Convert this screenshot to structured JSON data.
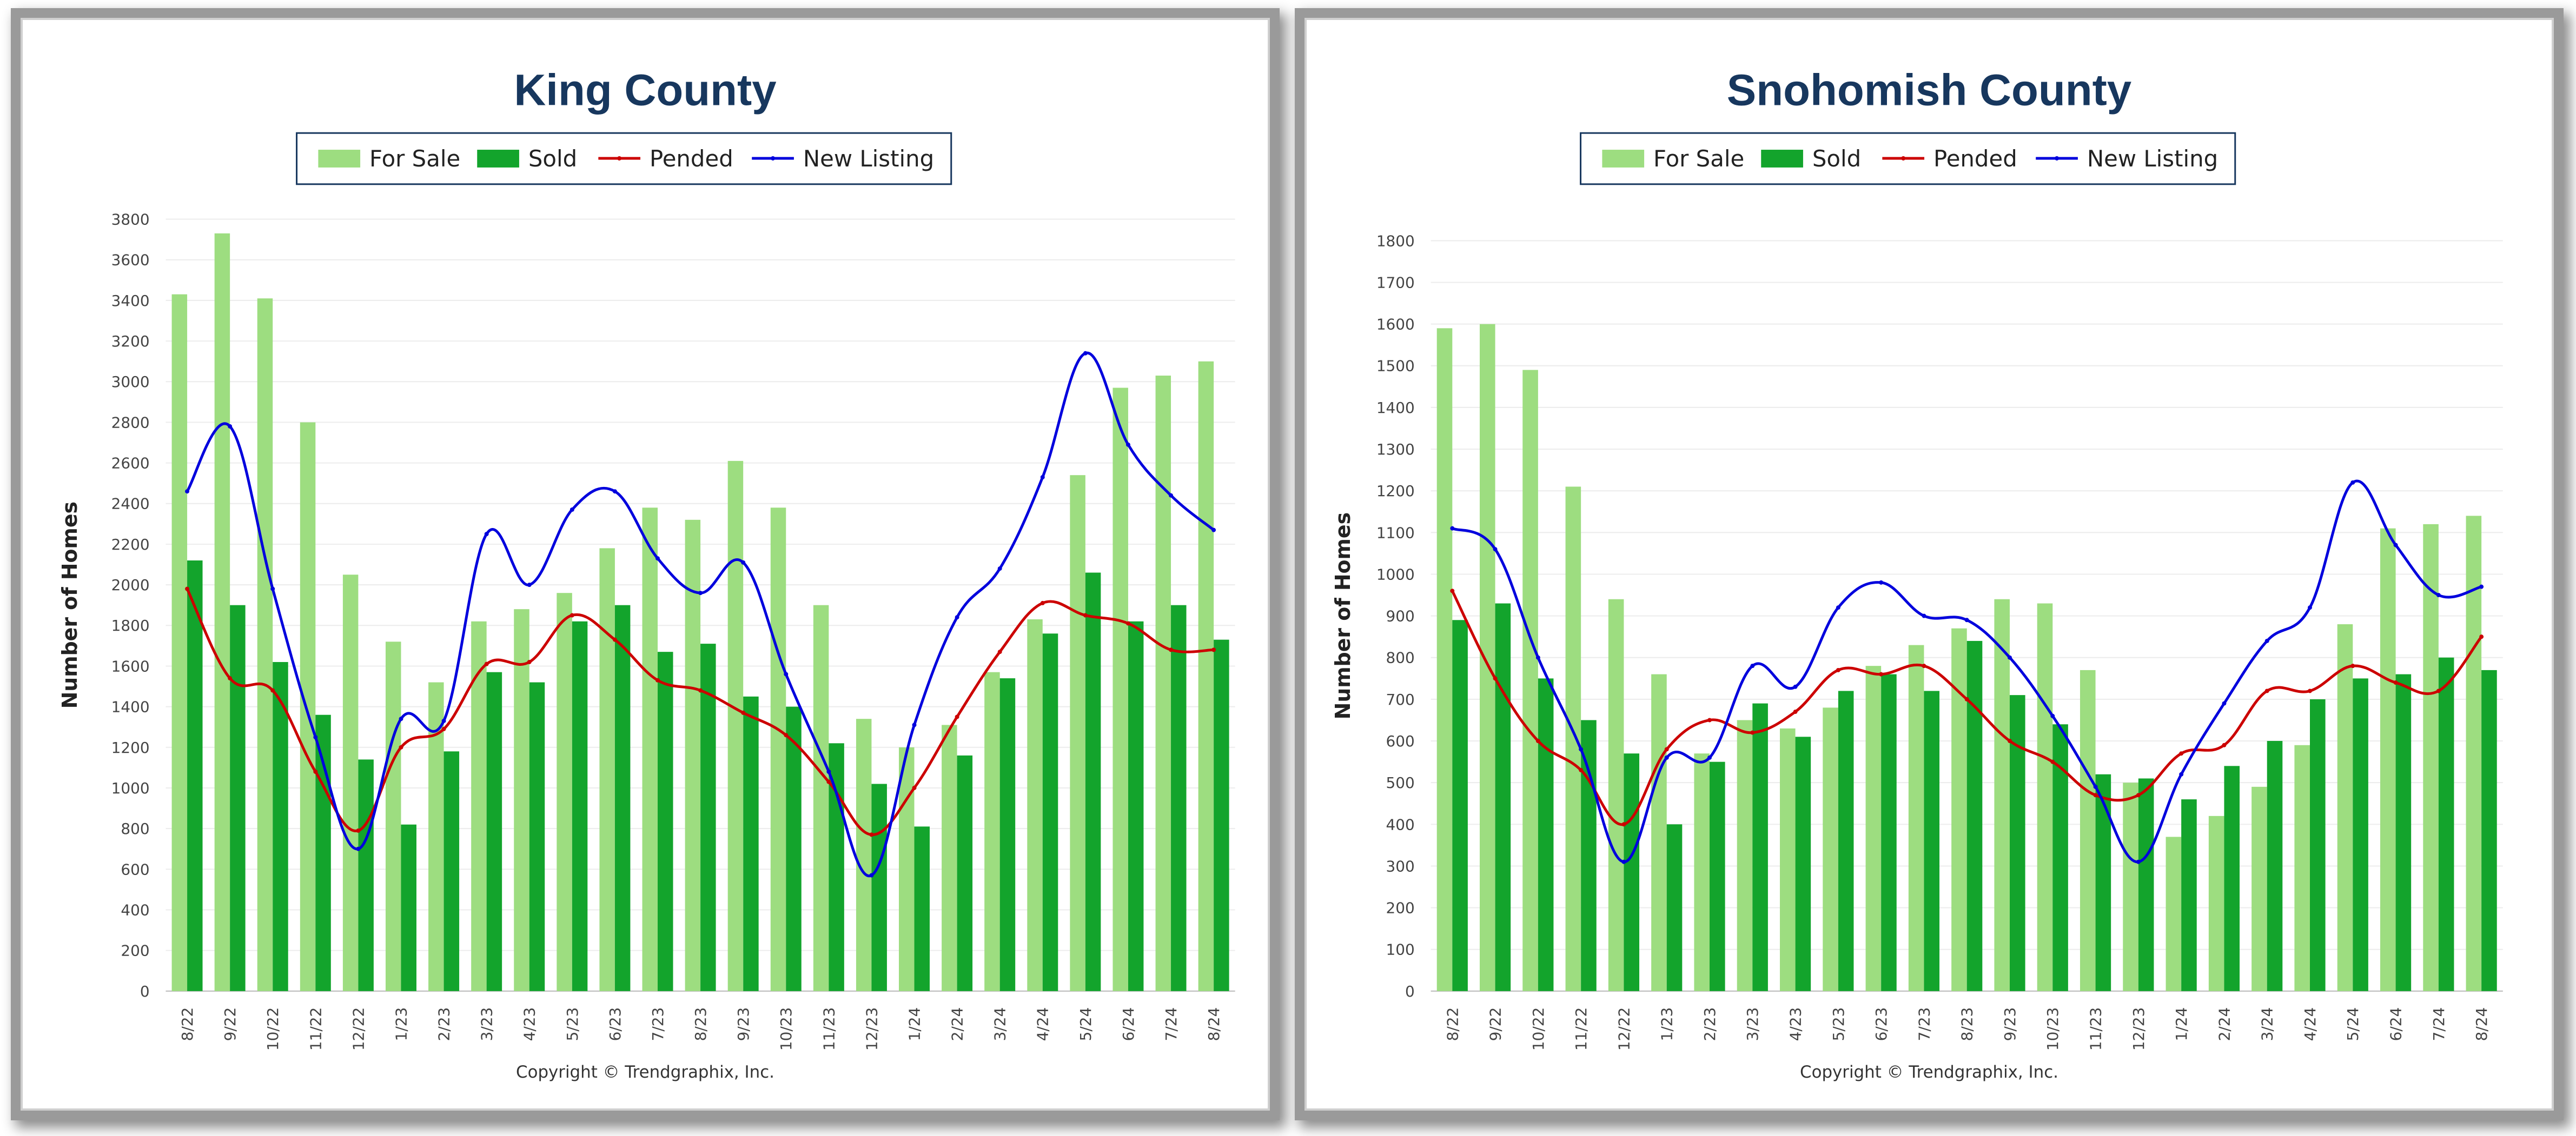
{
  "colors": {
    "for_sale": "#9ddd80",
    "sold": "#13a42c",
    "pended": "#cc0000",
    "new_listing": "#0000dd",
    "title": "#17375e"
  },
  "legend": {
    "for_sale": "For Sale",
    "sold": "Sold",
    "pended": "Pended",
    "new_listing": "New Listing"
  },
  "copyright": "Copyright © Trendgraphix, Inc.",
  "chart_data": [
    {
      "type": "bar",
      "title": "King County",
      "ylabel": "Number of Homes",
      "ylim": [
        0,
        3800
      ],
      "yticks": [
        0,
        200,
        400,
        600,
        800,
        1000,
        1200,
        1400,
        1600,
        1800,
        2000,
        2200,
        2400,
        2600,
        2800,
        3000,
        3200,
        3400,
        3600,
        3800
      ],
      "categories": [
        "8/22",
        "9/22",
        "10/22",
        "11/22",
        "12/22",
        "1/23",
        "2/23",
        "3/23",
        "4/23",
        "5/23",
        "6/23",
        "7/23",
        "8/23",
        "9/23",
        "10/23",
        "11/23",
        "12/23",
        "1/24",
        "2/24",
        "3/24",
        "4/24",
        "5/24",
        "6/24",
        "7/24",
        "8/24"
      ],
      "series": [
        {
          "name": "For Sale",
          "kind": "bar",
          "values": [
            3430,
            3730,
            3410,
            2800,
            2050,
            1720,
            1520,
            1820,
            1880,
            1960,
            2180,
            2380,
            2320,
            2610,
            2380,
            1900,
            1340,
            1200,
            1310,
            1570,
            1830,
            2540,
            2970,
            3030,
            3100
          ]
        },
        {
          "name": "Sold",
          "kind": "bar",
          "values": [
            2120,
            1900,
            1620,
            1360,
            1140,
            820,
            1180,
            1570,
            1520,
            1820,
            1900,
            1670,
            1710,
            1450,
            1400,
            1220,
            1020,
            810,
            1160,
            1540,
            1760,
            2060,
            1820,
            1900,
            1730
          ]
        },
        {
          "name": "Pended",
          "kind": "line",
          "values": [
            1980,
            1540,
            1480,
            1080,
            790,
            1200,
            1290,
            1610,
            1620,
            1850,
            1730,
            1530,
            1480,
            1370,
            1260,
            1030,
            770,
            1000,
            1350,
            1670,
            1910,
            1850,
            1810,
            1680,
            1680
          ]
        },
        {
          "name": "New Listing",
          "kind": "line",
          "values": [
            2460,
            2780,
            1980,
            1250,
            700,
            1340,
            1330,
            2250,
            2000,
            2370,
            2460,
            2130,
            1960,
            2110,
            1560,
            1080,
            570,
            1310,
            1840,
            2080,
            2530,
            3140,
            2690,
            2440,
            2270
          ]
        }
      ]
    },
    {
      "type": "bar",
      "title": "Snohomish County",
      "ylabel": "Number of Homes",
      "ylim": [
        0,
        1800
      ],
      "yticks": [
        0,
        100,
        200,
        300,
        400,
        500,
        600,
        700,
        800,
        900,
        1000,
        1100,
        1200,
        1300,
        1400,
        1500,
        1600,
        1700,
        1800
      ],
      "categories": [
        "8/22",
        "9/22",
        "10/22",
        "11/22",
        "12/22",
        "1/23",
        "2/23",
        "3/23",
        "4/23",
        "5/23",
        "6/23",
        "7/23",
        "8/23",
        "9/23",
        "10/23",
        "11/23",
        "12/23",
        "1/24",
        "2/24",
        "3/24",
        "4/24",
        "5/24",
        "6/24",
        "7/24",
        "8/24"
      ],
      "series": [
        {
          "name": "For Sale",
          "kind": "bar",
          "values": [
            1590,
            1600,
            1490,
            1210,
            940,
            760,
            570,
            650,
            630,
            680,
            780,
            830,
            870,
            940,
            930,
            770,
            500,
            370,
            420,
            490,
            590,
            880,
            1110,
            1120,
            1140
          ]
        },
        {
          "name": "Sold",
          "kind": "bar",
          "values": [
            890,
            930,
            750,
            650,
            570,
            400,
            550,
            690,
            610,
            720,
            760,
            720,
            840,
            710,
            640,
            520,
            510,
            460,
            540,
            600,
            700,
            750,
            760,
            800,
            770
          ]
        },
        {
          "name": "Pended",
          "kind": "line",
          "values": [
            960,
            750,
            600,
            530,
            400,
            580,
            650,
            620,
            670,
            770,
            760,
            780,
            700,
            600,
            550,
            470,
            470,
            570,
            590,
            720,
            720,
            780,
            740,
            720,
            850
          ]
        },
        {
          "name": "New Listing",
          "kind": "line",
          "values": [
            1110,
            1060,
            800,
            580,
            310,
            560,
            560,
            780,
            730,
            920,
            980,
            900,
            890,
            800,
            660,
            490,
            310,
            520,
            690,
            840,
            920,
            1220,
            1070,
            950,
            970
          ]
        }
      ]
    }
  ]
}
